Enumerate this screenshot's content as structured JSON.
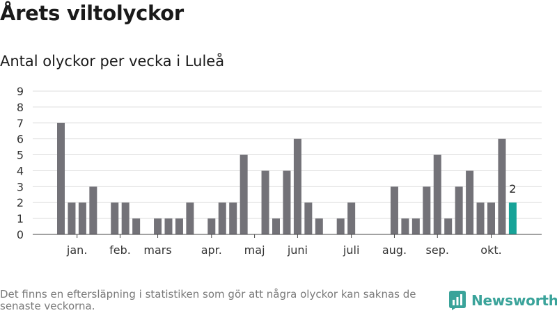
{
  "title": "Årets viltolyckor",
  "subtitle": "Antal olyckor per vecka i Luleå",
  "footnote": "Det finns en eftersläpning i statistiken som gör att några olyckor kan saknas de senaste veckorna.",
  "brand": {
    "name": "Newsworthy",
    "icon": "newsworthy-chart-icon",
    "color": "#3aa39a"
  },
  "chart_data": {
    "type": "bar",
    "ylim": [
      0,
      9
    ],
    "yticks": [
      "0",
      "1",
      "2",
      "3",
      "4",
      "5",
      "6",
      "7",
      "8",
      "9"
    ],
    "grid": true,
    "week_count": 43,
    "values": [
      7,
      2,
      2,
      3,
      0,
      2,
      2,
      1,
      0,
      1,
      1,
      1,
      2,
      0,
      1,
      2,
      2,
      5,
      0,
      4,
      1,
      4,
      6,
      2,
      1,
      0,
      1,
      2,
      0,
      0,
      0,
      3,
      1,
      1,
      3,
      5,
      1,
      3,
      4,
      2,
      2,
      6,
      2
    ],
    "month_labels": [
      {
        "label": "jan.",
        "week": 1.5
      },
      {
        "label": "feb.",
        "week": 5.5
      },
      {
        "label": "mars",
        "week": 9.0
      },
      {
        "label": "apr.",
        "week": 14.0
      },
      {
        "label": "maj",
        "week": 18.0
      },
      {
        "label": "juni",
        "week": 22.0
      },
      {
        "label": "juli",
        "week": 27.0
      },
      {
        "label": "aug.",
        "week": 31.0
      },
      {
        "label": "sep.",
        "week": 35.0
      },
      {
        "label": "okt.",
        "week": 40.0
      }
    ],
    "highlight": {
      "index": 42,
      "label": "2"
    },
    "colors": {
      "bar": "#737278",
      "highlight": "#17a398",
      "grid": "#dddddd",
      "axis": "#444444",
      "text": "#333333"
    }
  }
}
